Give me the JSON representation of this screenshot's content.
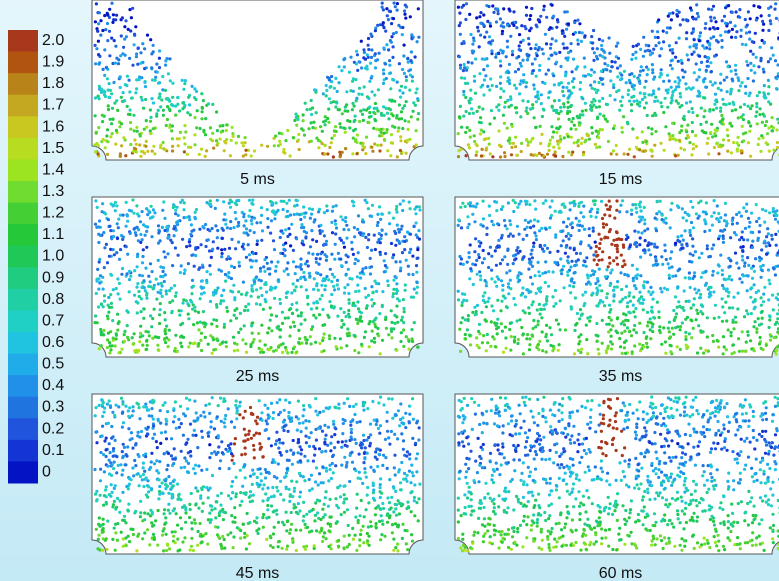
{
  "colorbar": {
    "labels": [
      "2.0",
      "1.9",
      "1.8",
      "1.7",
      "1.6",
      "1.5",
      "1.4",
      "1.3",
      "1.2",
      "1.1",
      "1.0",
      "0.9",
      "0.8",
      "0.7",
      "0.6",
      "0.5",
      "0.4",
      "0.3",
      "0.2",
      "0.1",
      "0"
    ],
    "colors": [
      "#a8381c",
      "#b05410",
      "#b8841a",
      "#c4a822",
      "#c8c820",
      "#b8dc20",
      "#9ce420",
      "#70dc30",
      "#44d034",
      "#24c838",
      "#20c858",
      "#20cc80",
      "#20d0a4",
      "#20d0c4",
      "#20c4e0",
      "#20ace8",
      "#2090e8",
      "#2074e0",
      "#2054dc",
      "#1434d4",
      "#0414c4"
    ]
  },
  "panels": [
    {
      "label": "5 ms"
    },
    {
      "label": "15 ms"
    },
    {
      "label": "25 ms"
    },
    {
      "label": "35 ms"
    },
    {
      "label": "45 ms"
    },
    {
      "label": "60 ms"
    }
  ]
}
